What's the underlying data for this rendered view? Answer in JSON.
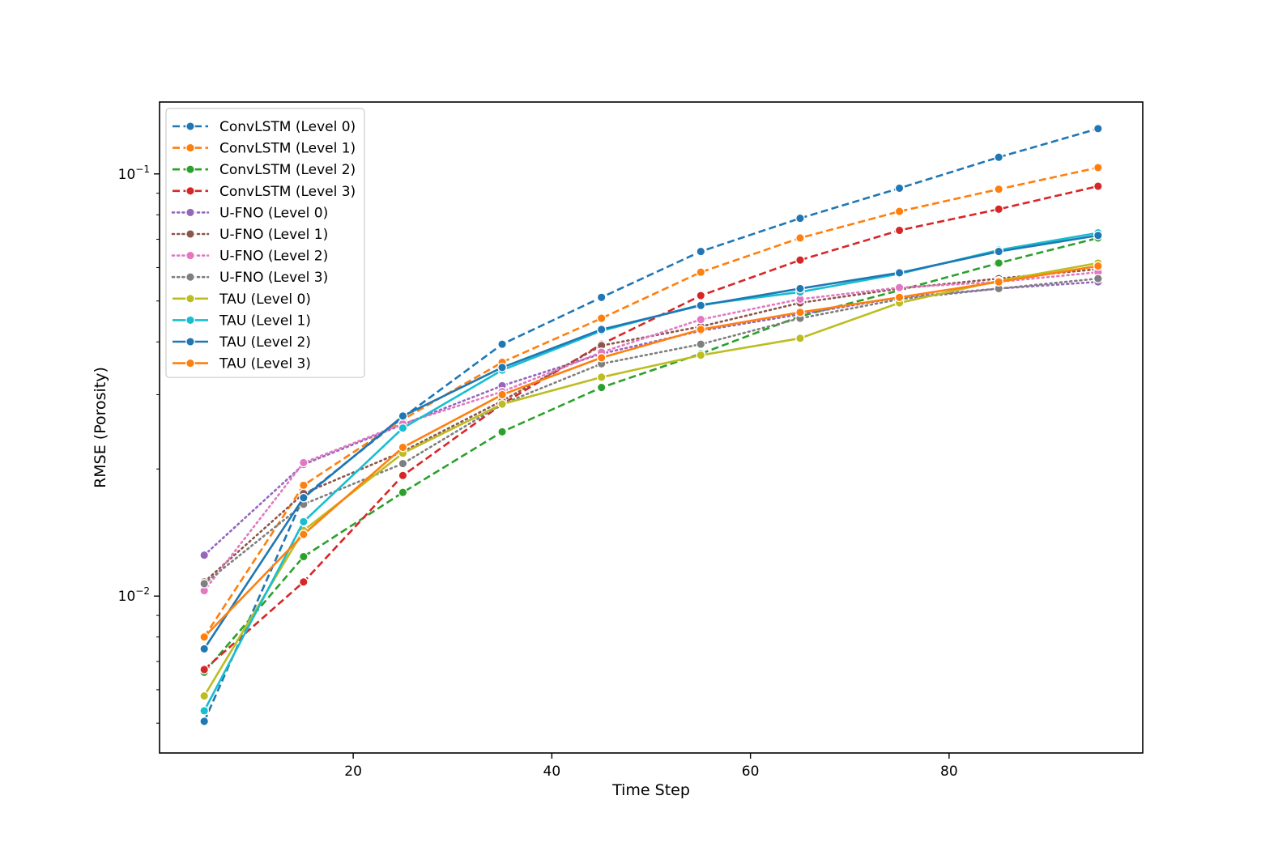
{
  "chart_data": {
    "type": "line",
    "title": "",
    "xlabel": "Time Step",
    "ylabel": "RMSE (Porosity)",
    "yscale": "log",
    "xlim": [
      0.5,
      99.5
    ],
    "ylim": [
      0.00425,
      0.148
    ],
    "xticks": [
      20,
      40,
      60,
      80
    ],
    "yticks": [
      {
        "value": 0.1,
        "base": "10",
        "exp": "−1"
      },
      {
        "value": 0.01,
        "base": "10",
        "exp": "−2"
      }
    ],
    "legend_position": "upper-left",
    "x": [
      5,
      15,
      25,
      35,
      45,
      55,
      65,
      75,
      85,
      95
    ],
    "series": [
      {
        "name": "ConvLSTM (Level 0)",
        "color": "#1f77b4",
        "style": "dashed",
        "values": [
          0.00505,
          0.0172,
          0.0265,
          0.0395,
          0.051,
          0.0655,
          0.0785,
          0.0925,
          0.1095,
          0.128
        ]
      },
      {
        "name": "ConvLSTM (Level 1)",
        "color": "#ff7f0e",
        "style": "dashed",
        "values": [
          0.008,
          0.0183,
          0.0262,
          0.0358,
          0.0455,
          0.0585,
          0.0705,
          0.0815,
          0.092,
          0.1035
        ]
      },
      {
        "name": "ConvLSTM (Level 2)",
        "color": "#2ca02c",
        "style": "dashed",
        "values": [
          0.0066,
          0.0124,
          0.0176,
          0.0245,
          0.0312,
          0.0375,
          0.046,
          0.053,
          0.0615,
          0.0705
        ]
      },
      {
        "name": "ConvLSTM (Level 3)",
        "color": "#d62728",
        "style": "dashed",
        "values": [
          0.0067,
          0.0108,
          0.0193,
          0.0285,
          0.0395,
          0.0515,
          0.0625,
          0.0735,
          0.0825,
          0.0935
        ]
      },
      {
        "name": "U-FNO (Level 0)",
        "color": "#9467bd",
        "style": "dotted",
        "values": [
          0.0125,
          0.0205,
          0.0255,
          0.0315,
          0.0375,
          0.0425,
          0.0465,
          0.051,
          0.0535,
          0.0555
        ]
      },
      {
        "name": "U-FNO (Level 1)",
        "color": "#8c564b",
        "style": "dotted",
        "values": [
          0.0108,
          0.0175,
          0.022,
          0.029,
          0.0392,
          0.0435,
          0.0495,
          0.0535,
          0.0565,
          0.0595
        ]
      },
      {
        "name": "U-FNO (Level 2)",
        "color": "#e377c2",
        "style": "dotted",
        "values": [
          0.0103,
          0.0207,
          0.0256,
          0.0305,
          0.0378,
          0.0452,
          0.0505,
          0.0538,
          0.0555,
          0.0585
        ]
      },
      {
        "name": "U-FNO (Level 3)",
        "color": "#7f7f7f",
        "style": "dotted",
        "values": [
          0.0107,
          0.0165,
          0.0206,
          0.0285,
          0.0355,
          0.0395,
          0.0455,
          0.0505,
          0.0535,
          0.0565
        ]
      },
      {
        "name": "TAU (Level 0)",
        "color": "#bcbd22",
        "style": "solid",
        "values": [
          0.0058,
          0.0143,
          0.0218,
          0.0285,
          0.033,
          0.0372,
          0.0408,
          0.0495,
          0.0558,
          0.0615
        ]
      },
      {
        "name": "TAU (Level 1)",
        "color": "#17becf",
        "style": "solid",
        "values": [
          0.00535,
          0.015,
          0.025,
          0.0343,
          0.0425,
          0.049,
          0.0525,
          0.058,
          0.066,
          0.0725
        ]
      },
      {
        "name": "TAU (Level 2)",
        "color": "#1f77b4",
        "style": "solid",
        "values": [
          0.0075,
          0.0171,
          0.0267,
          0.0348,
          0.0428,
          0.0488,
          0.0535,
          0.0583,
          0.0655,
          0.0715
        ]
      },
      {
        "name": "TAU (Level 3)",
        "color": "#ff7f0e",
        "style": "solid",
        "values": [
          0.008,
          0.014,
          0.0225,
          0.03,
          0.0367,
          0.0428,
          0.047,
          0.051,
          0.0555,
          0.0605
        ]
      }
    ]
  }
}
